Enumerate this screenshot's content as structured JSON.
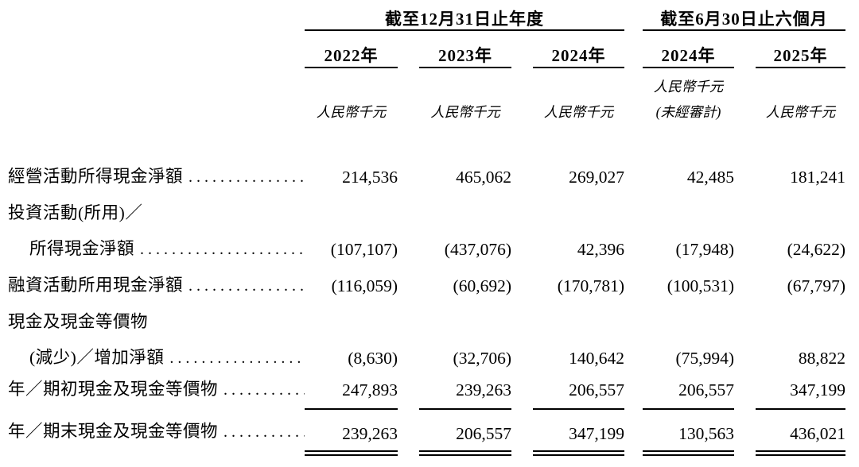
{
  "page": {
    "background": "#ffffff",
    "text_color": "#000000"
  },
  "table": {
    "group_headers": [
      {
        "label": "截至12月31日止年度",
        "colspan": 3
      },
      {
        "label": "截至6月30日止六個月",
        "colspan": 2
      }
    ],
    "columns": [
      {
        "year": "2022年",
        "unit": "人民幣千元",
        "note": ""
      },
      {
        "year": "2023年",
        "unit": "人民幣千元",
        "note": ""
      },
      {
        "year": "2024年",
        "unit": "人民幣千元",
        "note": ""
      },
      {
        "year": "2024年",
        "unit": "人民幣千元",
        "note": "(未經審計)"
      },
      {
        "year": "2025年",
        "unit": "人民幣千元",
        "note": ""
      }
    ],
    "rows": [
      {
        "label": "經營活動所得現金淨額",
        "indent": false,
        "leader": true,
        "values": [
          "214,536",
          "465,062",
          "269,027",
          "42,485",
          "181,241"
        ]
      },
      {
        "label": "投資活動(所用)／",
        "indent": false,
        "leader": false,
        "values": []
      },
      {
        "label": "所得現金淨額",
        "indent": true,
        "leader": true,
        "values": [
          "(107,107)",
          "(437,076)",
          "42,396",
          "(17,948)",
          "(24,622)"
        ]
      },
      {
        "label": "融資活動所用現金淨額",
        "indent": false,
        "leader": true,
        "values": [
          "(116,059)",
          "(60,692)",
          "(170,781)",
          "(100,531)",
          "(67,797)"
        ]
      },
      {
        "label": "現金及現金等價物",
        "indent": false,
        "leader": false,
        "values": []
      },
      {
        "label": "(減少)／增加淨額",
        "indent": true,
        "leader": true,
        "values": [
          "(8,630)",
          "(32,706)",
          "140,642",
          "(75,994)",
          "88,822"
        ]
      },
      {
        "label": "年／期初現金及現金等價物",
        "indent": false,
        "leader": true,
        "underline": "single",
        "values": [
          "247,893",
          "239,263",
          "206,557",
          "206,557",
          "347,199"
        ]
      },
      {
        "label": "年／期末現金及現金等價物",
        "indent": false,
        "leader": true,
        "underline": "double",
        "values": [
          "239,263",
          "206,557",
          "347,199",
          "130,563",
          "436,021"
        ]
      }
    ]
  }
}
